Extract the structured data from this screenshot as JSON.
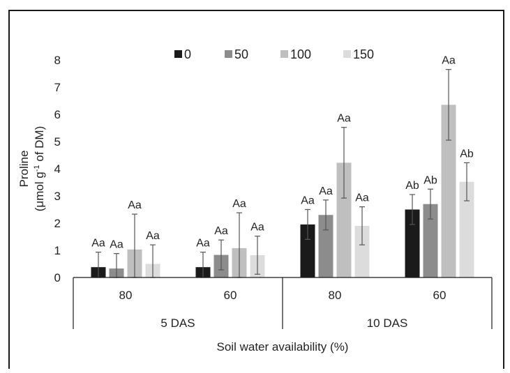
{
  "chart_data": {
    "type": "bar",
    "ylabel_line1": "Proline",
    "ylabel_line2_pre": "(μmol g",
    "ylabel_line2_sup": "-1",
    "ylabel_line2_post": " of DM)",
    "xlabel": "Soil water availability (%)",
    "ylim": [
      0,
      8
    ],
    "yticks": [
      "0",
      "1",
      "2",
      "3",
      "4",
      "5",
      "6",
      "7",
      "8"
    ],
    "legend_placement": "top",
    "groups": [
      {
        "label": "5 DAS",
        "categories": [
          "80",
          "60"
        ]
      },
      {
        "label": "10 DAS",
        "categories": [
          "80",
          "60"
        ]
      }
    ],
    "categories": [
      "80",
      "60",
      "80",
      "60"
    ],
    "series": [
      {
        "name": "0",
        "color": "#1a1a1a",
        "values": [
          0.38,
          0.38,
          1.95,
          2.5
        ],
        "errors": [
          0.55,
          0.55,
          0.55,
          0.55
        ],
        "labels": [
          "Aa",
          "Aa",
          "Aa",
          "Ab"
        ]
      },
      {
        "name": "50",
        "color": "#8c8c8c",
        "values": [
          0.33,
          0.83,
          2.3,
          2.7
        ],
        "errors": [
          0.55,
          0.55,
          0.55,
          0.55
        ],
        "labels": [
          "Aa",
          "Aa",
          "Aa",
          "Ab"
        ]
      },
      {
        "name": "100",
        "color": "#bfbfbf",
        "values": [
          1.03,
          1.08,
          4.22,
          6.35
        ],
        "errors": [
          1.3,
          1.3,
          1.3,
          1.3
        ],
        "labels": [
          "Aa",
          "Aa",
          "Aa",
          "Aa"
        ]
      },
      {
        "name": "150",
        "color": "#dcdcdc",
        "values": [
          0.5,
          0.82,
          1.9,
          3.52
        ],
        "errors": [
          0.7,
          0.7,
          0.7,
          0.7
        ],
        "labels": [
          "Aa",
          "Aa",
          "Aa",
          "Ab"
        ]
      }
    ]
  }
}
